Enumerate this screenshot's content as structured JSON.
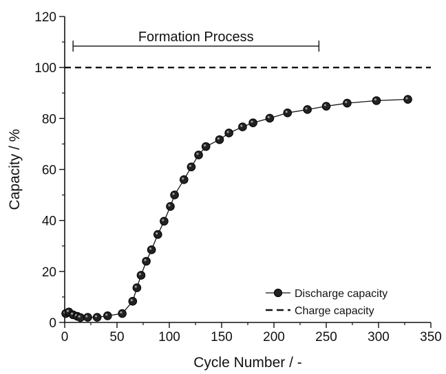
{
  "chart_data": {
    "type": "line",
    "title": "",
    "xlabel": "Cycle Number / -",
    "ylabel": "Capacity / %",
    "xlim": [
      0,
      350
    ],
    "ylim": [
      0,
      120
    ],
    "xticks": [
      0,
      50,
      100,
      150,
      200,
      250,
      300,
      350
    ],
    "yticks": [
      0,
      20,
      40,
      60,
      80,
      100,
      120
    ],
    "grid": false,
    "legend_position": "bottom-right",
    "series": [
      {
        "name": "Discharge capacity",
        "style": "line-with-circle-markers",
        "color": "#111111",
        "points": [
          [
            1,
            3.5
          ],
          [
            4,
            4.1
          ],
          [
            8,
            3.0
          ],
          [
            12,
            2.4
          ],
          [
            15,
            1.9
          ],
          [
            22,
            2.0
          ],
          [
            31,
            2.0
          ],
          [
            41,
            2.6
          ],
          [
            55,
            3.5
          ],
          [
            65,
            8.3
          ],
          [
            69,
            13.6
          ],
          [
            73,
            18.5
          ],
          [
            78,
            24.0
          ],
          [
            83,
            28.5
          ],
          [
            89,
            34.5
          ],
          [
            95,
            39.7
          ],
          [
            101,
            45.5
          ],
          [
            105,
            50.0
          ],
          [
            114,
            56.0
          ],
          [
            121,
            61.0
          ],
          [
            128,
            65.7
          ],
          [
            135,
            69.0
          ],
          [
            148,
            71.7
          ],
          [
            157,
            74.3
          ],
          [
            170,
            76.7
          ],
          [
            180,
            78.3
          ],
          [
            196,
            80.1
          ],
          [
            213,
            82.2
          ],
          [
            232,
            83.5
          ],
          [
            250,
            84.8
          ],
          [
            270,
            86.0
          ],
          [
            298,
            87.0
          ],
          [
            328,
            87.5
          ]
        ]
      },
      {
        "name": "Charge capacity",
        "style": "dashed",
        "color": "#111111",
        "points": [
          [
            0,
            100
          ],
          [
            350,
            100
          ]
        ]
      }
    ],
    "annotations": [
      {
        "text": "Formation Process",
        "x_range": [
          8,
          243
        ],
        "y": 110
      }
    ]
  }
}
